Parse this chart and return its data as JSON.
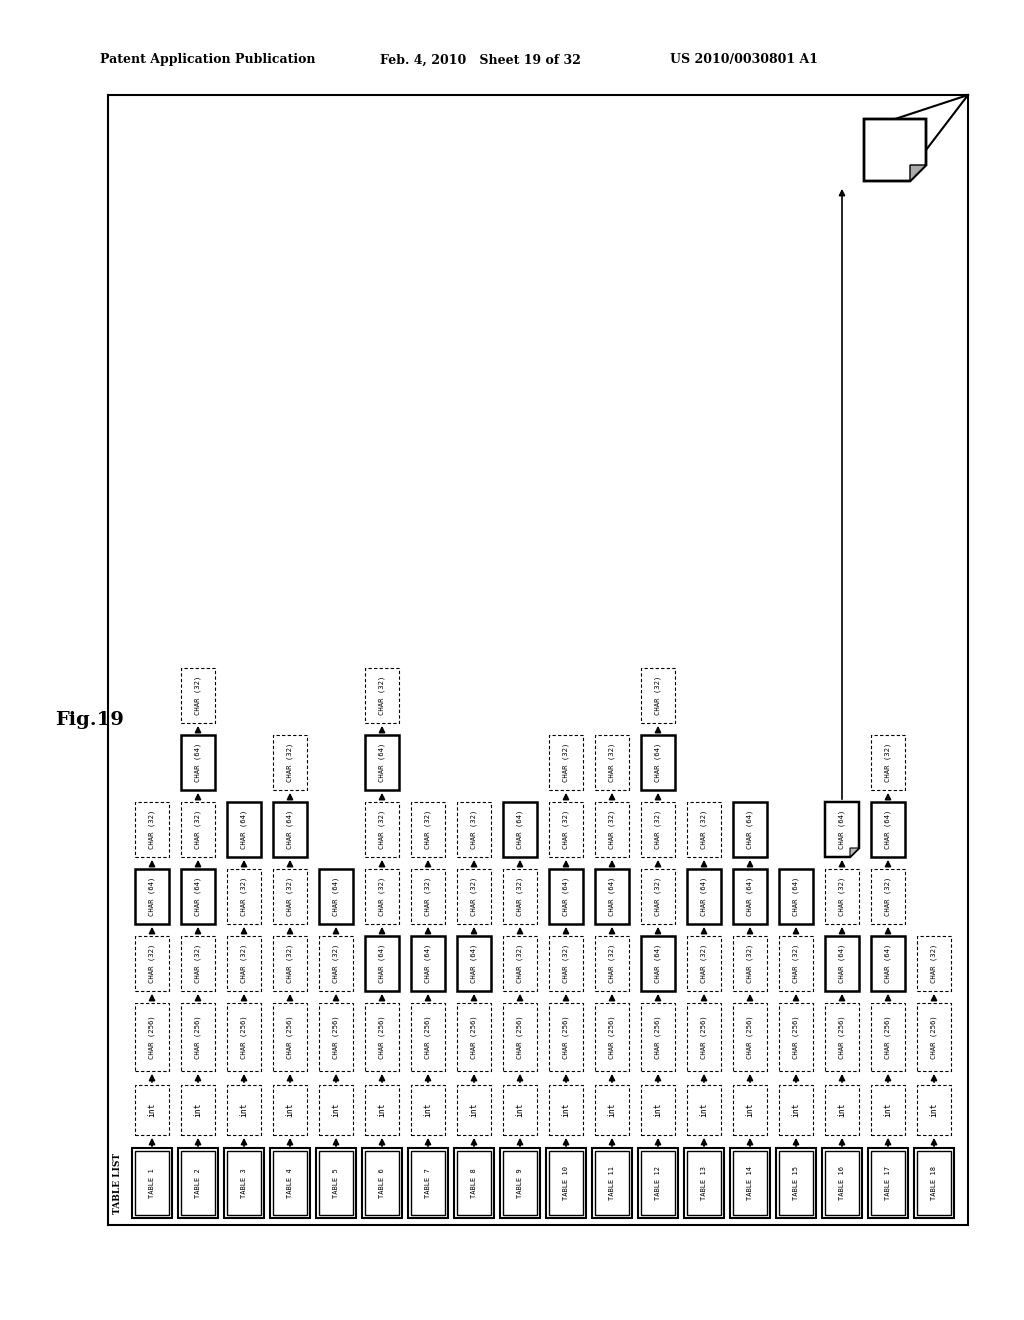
{
  "header_left": "Patent Application Publication",
  "header_mid": "Feb. 4, 2010   Sheet 19 of 32",
  "header_right": "US 2010/0030801 A1",
  "fig_label": "Fig.19",
  "table_list_label": "TABLE LIST",
  "num_tables": 18,
  "table_labels": [
    "TABLE 1",
    "TABLE 2",
    "TABLE 3",
    "TABLE 4",
    "TABLE 5",
    "TABLE 6",
    "TABLE 7",
    "TABLE 8",
    "TABLE 9",
    "TABLE 10",
    "TABLE 11",
    "TABLE 12",
    "TABLE 13",
    "TABLE 14",
    "TABLE 15",
    "TABLE 16",
    "TABLE 17",
    "TABLE 18"
  ],
  "bg_color": "#ffffff",
  "upper_char_sequences": [
    [
      "CHAR (32)",
      "CHAR (64)",
      "CHAR (32)"
    ],
    [
      "CHAR (32)",
      "CHAR (64)",
      "CHAR (32)",
      "CHAR (64)",
      "CHAR (32)"
    ],
    [
      "CHAR (32)",
      "CHAR (32)",
      "CHAR (64)"
    ],
    [
      "CHAR (32)",
      "CHAR (32)",
      "CHAR (64)",
      "CHAR (32)"
    ],
    [
      "CHAR (32)",
      "CHAR (64)"
    ],
    [
      "CHAR (64)",
      "CHAR (32)",
      "CHAR (32)",
      "CHAR (64)",
      "CHAR (32)"
    ],
    [
      "CHAR (64)",
      "CHAR (32)",
      "CHAR (32)"
    ],
    [
      "CHAR (64)",
      "CHAR (32)",
      "CHAR (32)"
    ],
    [
      "CHAR (32)",
      "CHAR (32)",
      "CHAR (64)"
    ],
    [
      "CHAR (32)",
      "CHAR (64)",
      "CHAR (32)",
      "CHAR (32)"
    ],
    [
      "CHAR (32)",
      "CHAR (64)",
      "CHAR (32)",
      "CHAR (32)"
    ],
    [
      "CHAR (64)",
      "CHAR (32)",
      "CHAR (32)",
      "CHAR (64)",
      "CHAR (32)"
    ],
    [
      "CHAR (32)",
      "CHAR (64)",
      "CHAR (32)"
    ],
    [
      "CHAR (32)",
      "CHAR (64)",
      "CHAR (64)"
    ],
    [
      "CHAR (32)",
      "CHAR (64)"
    ],
    [
      "CHAR (64)",
      "CHAR (32)",
      "CHAR (64)"
    ],
    [
      "CHAR (64)",
      "CHAR (32)",
      "CHAR (64)",
      "CHAR (32)"
    ],
    [
      "CHAR (32)"
    ]
  ],
  "folded_table_idx": 15
}
